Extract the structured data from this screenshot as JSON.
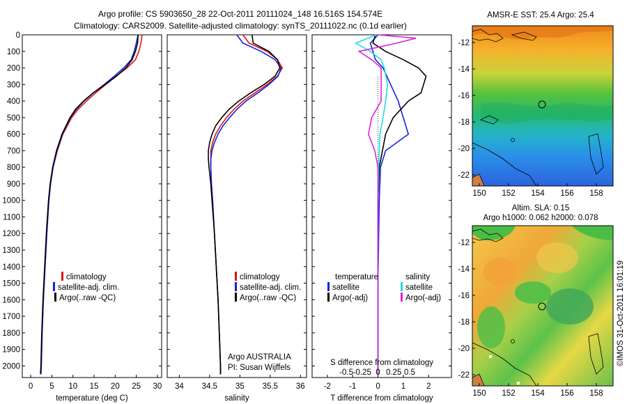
{
  "header": {
    "line1": "Argo profile: CS 5903650_28 22-Oct-2011 20111024_148 16.516S 154.574E",
    "line2": "Climatology: CARS2009. Satellite-adjusted climatology: synTS_20111022.nc (0.1d earlier)"
  },
  "colors": {
    "climatology": "#dd1111",
    "satellite": "#1122dd",
    "argo": "#000000",
    "salinity_sat": "#22dddd",
    "salinity_argo": "#dd22dd"
  },
  "depth_ticks": [
    0,
    100,
    200,
    300,
    400,
    500,
    600,
    700,
    800,
    900,
    1000,
    1100,
    1200,
    1300,
    1400,
    1500,
    1600,
    1700,
    1800,
    1900,
    2000
  ],
  "chart_data": [
    {
      "type": "line",
      "name": "temperature",
      "xlabel": "temperature (deg C)",
      "ylabel": "depth",
      "xlim": [
        -2,
        31
      ],
      "ylim": [
        2070,
        0
      ],
      "xticks": [
        0,
        5,
        10,
        15,
        20,
        25,
        30
      ],
      "legend": [
        "climatology",
        "satellite-adj. clim.",
        "Argo(..raw -QC)"
      ],
      "series": [
        {
          "name": "climatology",
          "depth": [
            0,
            50,
            100,
            150,
            200,
            250,
            300,
            350,
            400,
            450,
            500,
            600,
            700,
            800,
            900,
            1000,
            1200,
            1400,
            1600,
            1800,
            2000,
            2050
          ],
          "values": [
            26.4,
            26.1,
            25.6,
            24.8,
            22.8,
            20.2,
            17.8,
            15.4,
            13.2,
            11.2,
            9.7,
            7.6,
            6.3,
            5.3,
            4.7,
            4.3,
            3.8,
            3.4,
            3.0,
            2.7,
            2.5,
            2.4
          ]
        },
        {
          "name": "satellite",
          "depth": [
            0,
            50,
            100,
            150,
            200,
            250,
            300,
            350,
            400,
            450,
            500,
            600,
            700,
            800,
            900,
            1000,
            1200,
            1400,
            1600,
            1800,
            2000,
            2050
          ],
          "values": [
            25.4,
            25.0,
            24.5,
            23.8,
            22.0,
            19.8,
            17.4,
            14.9,
            12.6,
            10.8,
            9.4,
            7.5,
            6.2,
            5.3,
            4.7,
            4.3,
            3.8,
            3.4,
            3.0,
            2.7,
            2.5,
            2.4
          ]
        },
        {
          "name": "argo",
          "depth": [
            0,
            50,
            100,
            150,
            200,
            250,
            300,
            350,
            400,
            450,
            500,
            600,
            700,
            800,
            900,
            1000,
            1200,
            1400,
            1600,
            1800,
            2000,
            2050
          ],
          "values": [
            25.4,
            25.3,
            24.8,
            24.0,
            22.5,
            20.3,
            17.6,
            14.8,
            12.5,
            10.6,
            9.3,
            7.4,
            6.1,
            5.2,
            4.6,
            4.2,
            3.7,
            3.3,
            2.9,
            2.6,
            2.4,
            2.3
          ]
        }
      ]
    },
    {
      "type": "line",
      "name": "salinity",
      "xlabel": "salinity",
      "ylabel": "depth",
      "xlim": [
        33.8,
        36.1
      ],
      "ylim": [
        2070,
        0
      ],
      "xticks": [
        34,
        34.5,
        35,
        35.5,
        36
      ],
      "legend": [
        "climatology",
        "satellite-adj. clim.",
        "Argo(..raw -QC)"
      ],
      "annotation": [
        "Argo AUSTRALIA",
        "PI: Susan Wijffels"
      ],
      "series": [
        {
          "name": "climatology",
          "depth": [
            0,
            50,
            100,
            150,
            200,
            250,
            300,
            350,
            400,
            450,
            500,
            550,
            600,
            650,
            700,
            750,
            800,
            900,
            1000,
            1200,
            1400,
            1600,
            1800,
            2000,
            2050
          ],
          "values": [
            35.05,
            35.15,
            35.45,
            35.62,
            35.7,
            35.62,
            35.45,
            35.25,
            35.05,
            34.9,
            34.78,
            34.68,
            34.6,
            34.55,
            34.52,
            34.52,
            34.52,
            34.53,
            34.55,
            34.58,
            34.61,
            34.64,
            34.66,
            34.68,
            34.68
          ]
        },
        {
          "name": "satellite",
          "depth": [
            0,
            50,
            100,
            150,
            200,
            250,
            300,
            350,
            400,
            450,
            500,
            550,
            600,
            650,
            700,
            750,
            800,
            900,
            1000,
            1200,
            1400,
            1600,
            1800,
            2000,
            2050
          ],
          "values": [
            34.95,
            35.05,
            35.35,
            35.58,
            35.68,
            35.63,
            35.48,
            35.3,
            35.1,
            34.95,
            34.83,
            34.72,
            34.64,
            34.58,
            34.54,
            34.52,
            34.52,
            34.53,
            34.55,
            34.58,
            34.61,
            34.64,
            34.66,
            34.68,
            34.68
          ]
        },
        {
          "name": "argo",
          "depth": [
            0,
            50,
            100,
            150,
            200,
            250,
            300,
            350,
            400,
            450,
            500,
            550,
            600,
            650,
            700,
            750,
            800,
            900,
            1000,
            1200,
            1400,
            1600,
            1800,
            2000,
            2050
          ],
          "values": [
            35.2,
            35.22,
            35.48,
            35.62,
            35.66,
            35.58,
            35.4,
            35.18,
            34.98,
            34.82,
            34.7,
            34.6,
            34.54,
            34.5,
            34.48,
            34.48,
            34.49,
            34.52,
            34.54,
            34.58,
            34.61,
            34.64,
            34.66,
            34.68,
            34.68
          ]
        }
      ]
    },
    {
      "type": "line",
      "name": "difference",
      "xlabel": "T difference from climatology",
      "xlabel2": "S difference from climatology",
      "xlim": [
        -2.6,
        2.9
      ],
      "ylim": [
        2070,
        0
      ],
      "xticks": [
        -2,
        -1,
        0,
        1,
        2
      ],
      "xticks2": [
        -0.5,
        -0.25,
        0,
        0.25,
        0.5
      ],
      "legend_t": [
        "temperature",
        "satellite",
        "Argo(-adj)"
      ],
      "legend_s": [
        "salinity",
        "satellite",
        "Argo(-adj)"
      ],
      "series": [
        {
          "name": "temperature satellite",
          "depth": [
            0,
            50,
            100,
            150,
            200,
            300,
            400,
            500,
            600,
            700,
            800,
            1000,
            1500,
            2000,
            2050
          ],
          "values": [
            0.0,
            -0.3,
            -0.2,
            -0.1,
            0.2,
            0.5,
            0.8,
            1.0,
            1.2,
            0.3,
            0.1,
            0.05,
            0.0,
            0.0,
            0.0
          ]
        },
        {
          "name": "temperature argo",
          "depth": [
            0,
            50,
            100,
            150,
            200,
            250,
            300,
            350,
            400,
            500,
            600,
            800,
            1000,
            1500,
            2000,
            2050
          ],
          "values": [
            -0.1,
            -0.2,
            0.3,
            1.0,
            1.6,
            1.9,
            1.8,
            1.7,
            1.2,
            0.6,
            0.3,
            0.05,
            0.0,
            0.0,
            0.0,
            0.0
          ]
        },
        {
          "name": "salinity satellite",
          "depth": [
            0,
            50,
            100,
            150,
            200,
            300,
            400,
            500,
            600,
            800,
            1000,
            1500,
            2000,
            2050
          ],
          "values": [
            -0.02,
            -0.35,
            -0.12,
            0.05,
            0.1,
            0.15,
            0.12,
            0.08,
            0.03,
            0.01,
            0.0,
            0.0,
            0.0,
            0.0
          ]
        },
        {
          "name": "salinity argo",
          "depth": [
            0,
            20,
            50,
            100,
            150,
            200,
            300,
            400,
            500,
            600,
            700,
            800,
            1000,
            1500,
            2000,
            2050
          ],
          "values": [
            0.0,
            0.6,
            0.3,
            -0.3,
            -0.1,
            0.05,
            0.05,
            0.05,
            -0.1,
            -0.15,
            -0.05,
            0.0,
            0.0,
            0.0,
            0.0,
            0.0
          ]
        }
      ]
    }
  ],
  "maps": {
    "sst": {
      "title": "AMSR-E SST: 25.4  Argo: 25.4",
      "yticks": [
        "-12",
        "-14",
        "-16",
        "-18",
        "-20",
        "-22"
      ],
      "xticks": [
        "150",
        "152",
        "154",
        "156",
        "158"
      ]
    },
    "sla": {
      "title1": "Altim. SLA: 0.15",
      "title2": "Argo h1000: 0.062 h2000: 0.078",
      "yticks": [
        "-12",
        "-14",
        "-16",
        "-18",
        "-20",
        "-22"
      ],
      "xticks": [
        "150",
        "152",
        "154",
        "156",
        "158"
      ]
    },
    "credit": "©IMOS 31-Oct-2011 16:01:19"
  }
}
